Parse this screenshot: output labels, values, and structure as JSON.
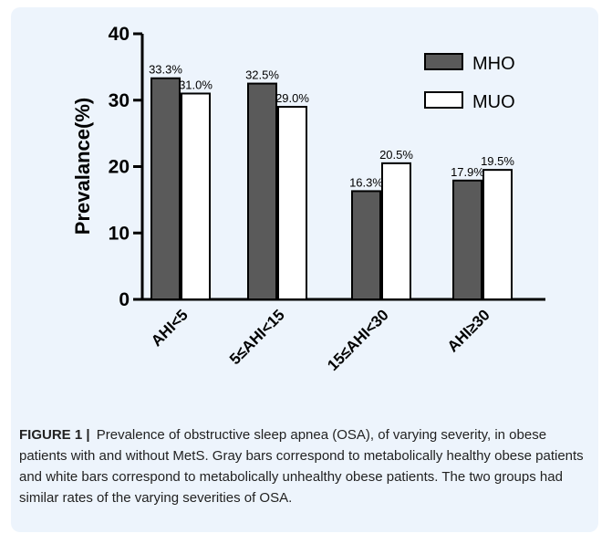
{
  "chart_data": {
    "type": "bar",
    "categories": [
      "AHI<5",
      "5≤AHI<15",
      "15≤AHI<30",
      "AHI≥30"
    ],
    "series": [
      {
        "name": "MHO",
        "values": [
          33.3,
          32.5,
          16.3,
          17.9
        ],
        "labels": [
          "33.3%",
          "32.5%",
          "16.3%",
          "17.9%"
        ],
        "color": "#5a5a5a"
      },
      {
        "name": "MUO",
        "values": [
          31.0,
          29.0,
          20.5,
          19.5
        ],
        "labels": [
          "31.0%",
          "29.0%",
          "20.5%",
          "19.5%"
        ],
        "color": "#ffffff"
      }
    ],
    "ylabel": "Prevalance(%)",
    "xlabel": "",
    "ylim": [
      0,
      40
    ],
    "yticks": [
      "0",
      "10",
      "20",
      "30",
      "40"
    ],
    "legend": "top-right",
    "grid": false
  },
  "caption": {
    "label": "FIGURE 1",
    "separator": "|",
    "text": "Prevalence of obstructive sleep apnea (OSA), of varying severity, in obese patients with and without MetS. Gray bars correspond to metabolically healthy obese patients and white bars correspond to metabolically unhealthy obese patients. The two groups had similar rates of the varying severities of OSA."
  }
}
